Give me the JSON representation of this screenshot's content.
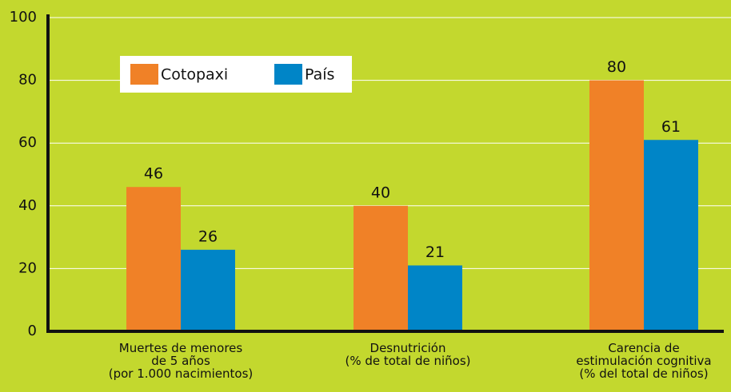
{
  "chart_data": {
    "type": "bar",
    "categories": [
      "Muertes de menores\nde 5 años\n(por 1.000 nacimientos)",
      "Desnutrición\n(% de total de niños)",
      "Carencia de\nestimulación cognitiva\n(% del total de niños)"
    ],
    "series": [
      {
        "name": "Cotopaxi",
        "color": "#f08127",
        "values": [
          46,
          40,
          80
        ]
      },
      {
        "name": "País",
        "color": "#0085c7",
        "values": [
          26,
          21,
          61
        ]
      }
    ],
    "ylim": [
      0,
      100
    ],
    "yticks": [
      0,
      20,
      40,
      60,
      80,
      100
    ],
    "grid": true
  }
}
